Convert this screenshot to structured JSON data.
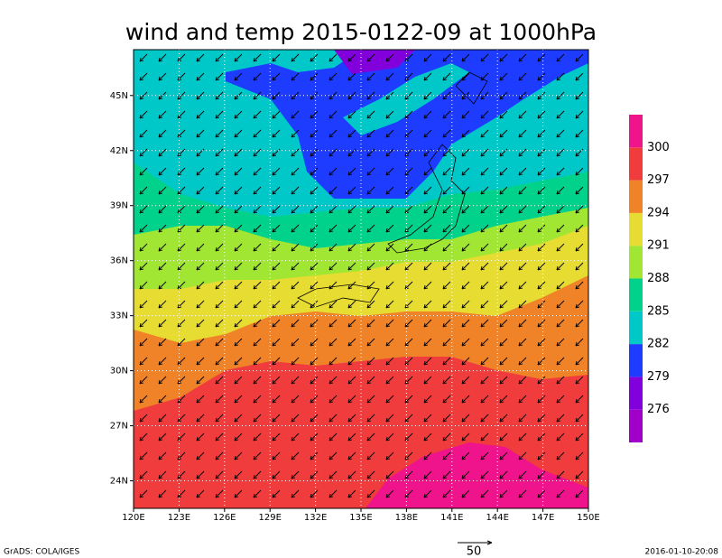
{
  "title": "wind and temp 2015-0122-09 at 1000hPa",
  "map": {
    "xlim": [
      120,
      150
    ],
    "ylim": [
      22.5,
      47.5
    ],
    "xticks": [
      {
        "value": 120,
        "label": "120E"
      },
      {
        "value": 123,
        "label": "123E"
      },
      {
        "value": 126,
        "label": "126E"
      },
      {
        "value": 129,
        "label": "129E"
      },
      {
        "value": 132,
        "label": "132E"
      },
      {
        "value": 135,
        "label": "135E"
      },
      {
        "value": 138,
        "label": "138E"
      },
      {
        "value": 141,
        "label": "141E"
      },
      {
        "value": 144,
        "label": "144E"
      },
      {
        "value": 147,
        "label": "147E"
      },
      {
        "value": 150,
        "label": "150E"
      }
    ],
    "yticks": [
      {
        "value": 24,
        "label": "24N"
      },
      {
        "value": 27,
        "label": "27N"
      },
      {
        "value": 30,
        "label": "30N"
      },
      {
        "value": 33,
        "label": "33N"
      },
      {
        "value": 36,
        "label": "36N"
      },
      {
        "value": 39,
        "label": "39N"
      },
      {
        "value": 42,
        "label": "42N"
      },
      {
        "value": 45,
        "label": "45N"
      }
    ],
    "grid": true
  },
  "colorbar": {
    "levels": [
      276,
      279,
      282,
      285,
      288,
      291,
      294,
      297,
      300
    ],
    "colors": [
      "#a000c8",
      "#8200dc",
      "#1e3cff",
      "#00c8c8",
      "#00d28c",
      "#a0e632",
      "#e6dc32",
      "#f08228",
      "#f03c3c",
      "#f0148c"
    ]
  },
  "vector_scale": 50,
  "footer_left": "GrADS: COLA/IGES",
  "footer_right": "2016-01-10-20:08"
}
